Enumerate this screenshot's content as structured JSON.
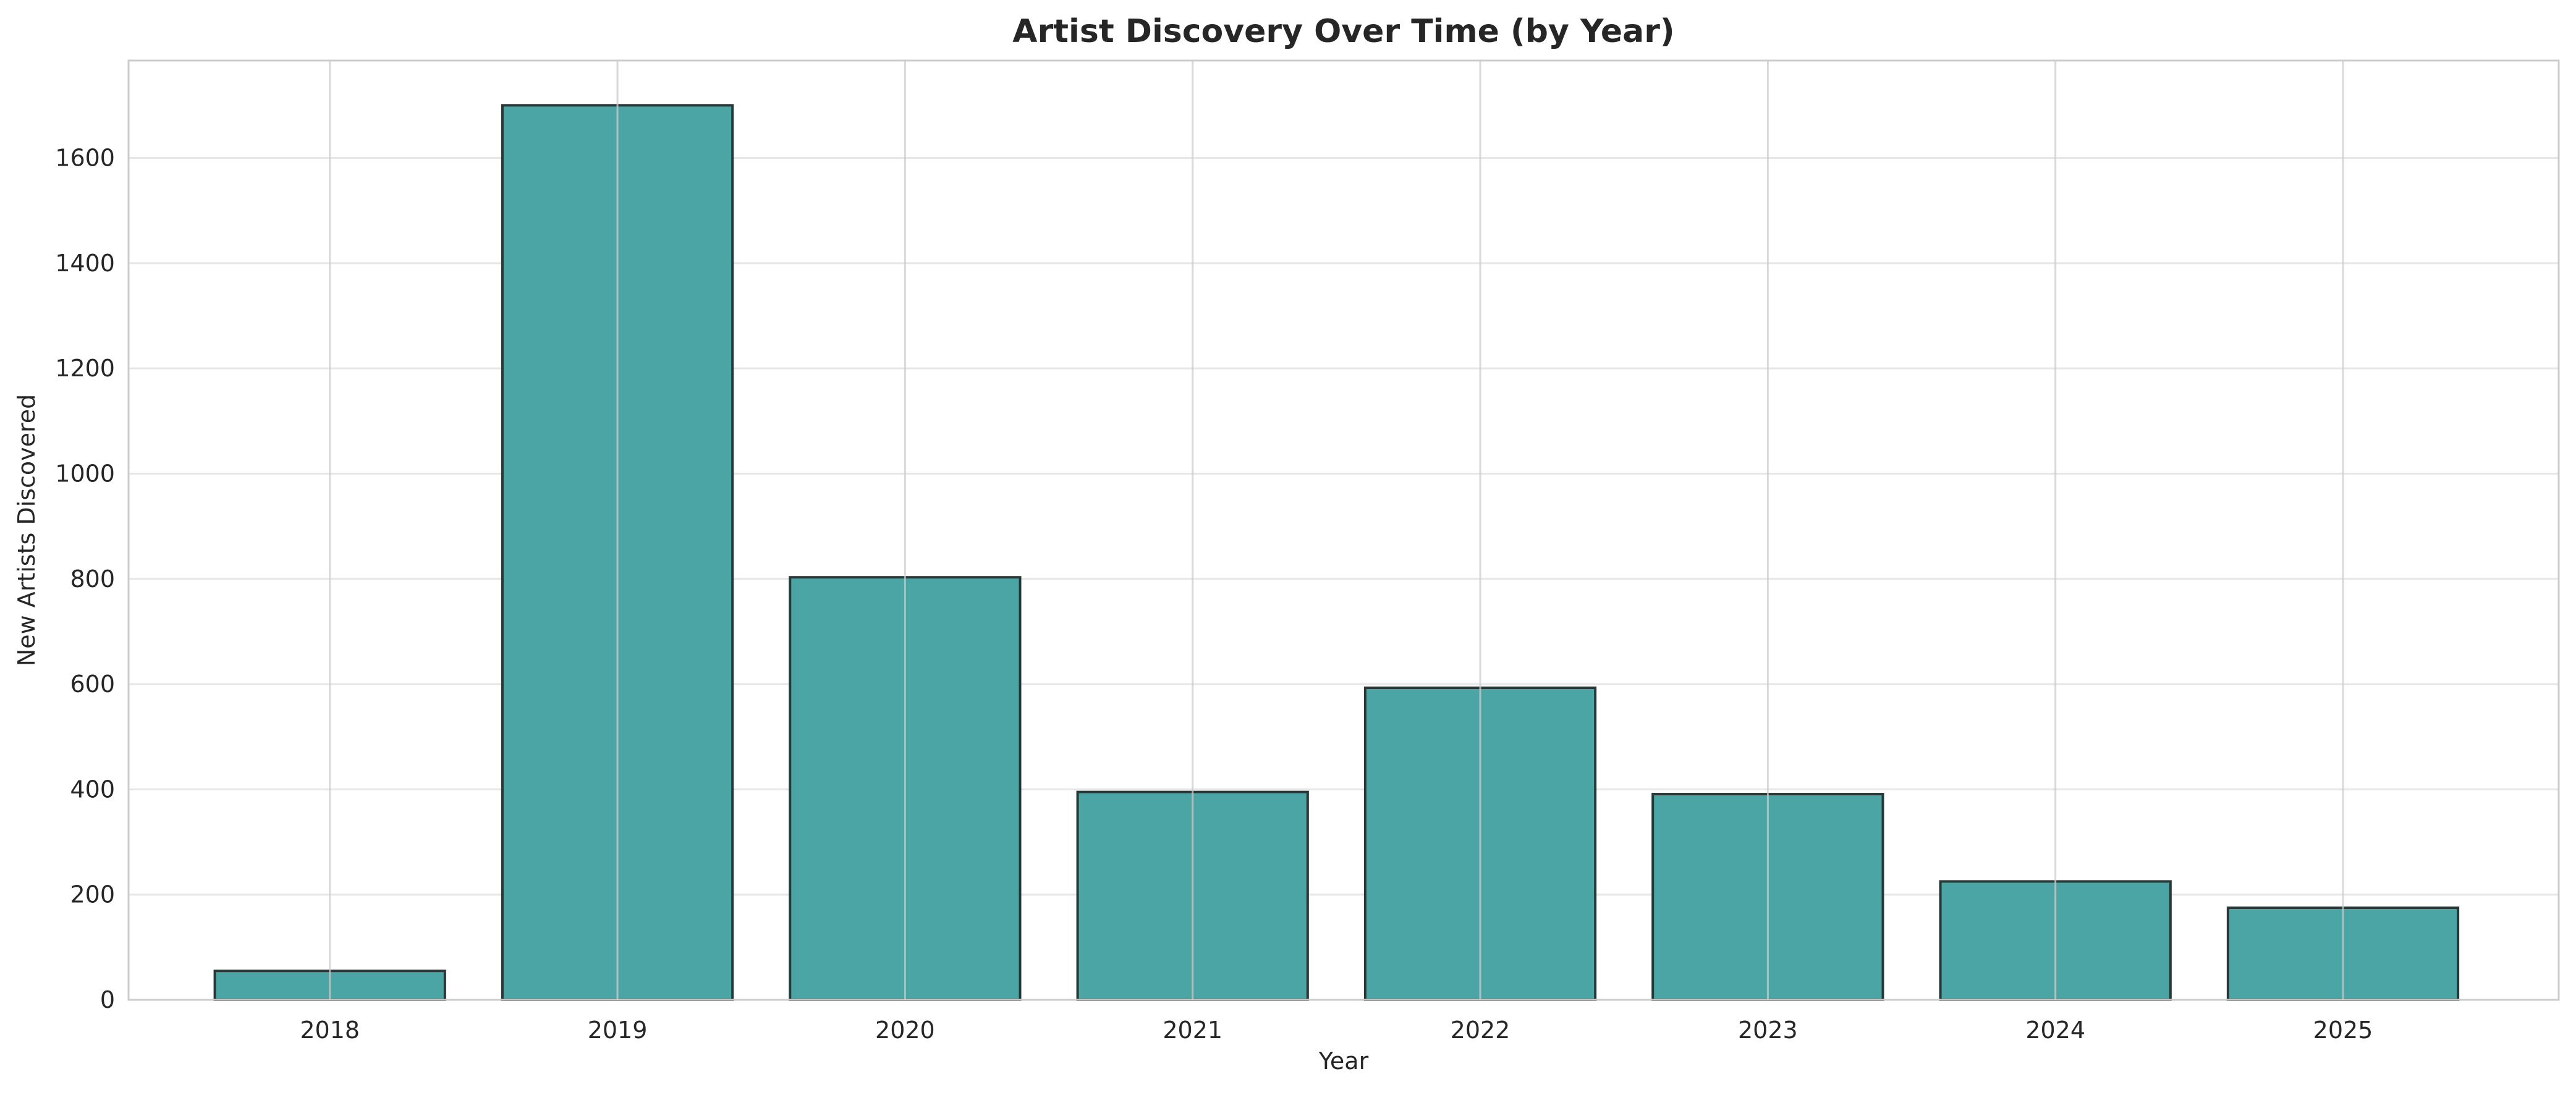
{
  "chart_data": {
    "type": "bar",
    "title": "Artist Discovery Over Time (by Year)",
    "xlabel": "Year",
    "ylabel": "New Artists Discovered",
    "categories": [
      "2018",
      "2019",
      "2020",
      "2021",
      "2022",
      "2023",
      "2024",
      "2025"
    ],
    "values": [
      55,
      1700,
      803,
      395,
      593,
      391,
      225,
      175
    ],
    "ylim": [
      0,
      1785
    ],
    "yticks": [
      "0",
      "200",
      "400",
      "600",
      "800",
      "1000",
      "1200",
      "1400",
      "1600"
    ],
    "grid": true,
    "legend": "none",
    "colors": {
      "bar_fill": "#4ca5a5",
      "bar_edge": "#263838",
      "grid": "#e6e6e6",
      "vertical_grid": "#cccccc",
      "frame": "#cccccc"
    }
  }
}
